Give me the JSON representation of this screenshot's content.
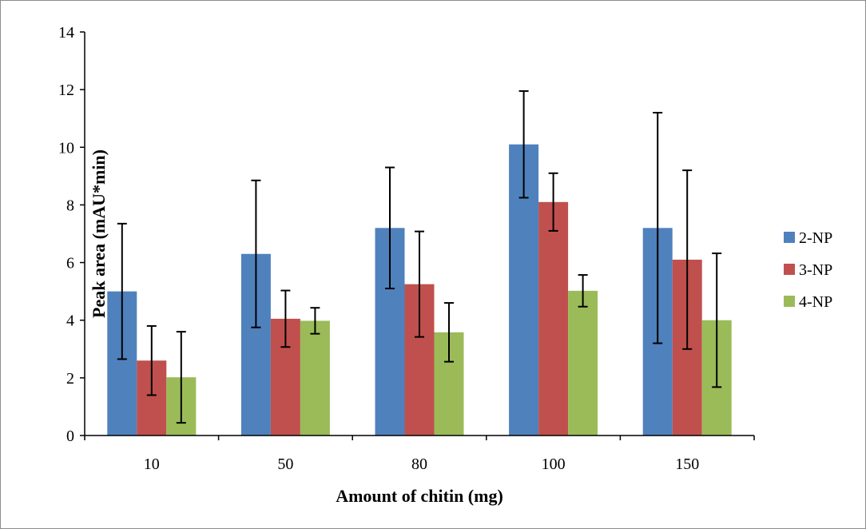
{
  "chart_data": {
    "type": "bar",
    "title": "",
    "xlabel": "Amount of chitin (mg)",
    "ylabel": "Peak area (mAU*min)",
    "categories": [
      "10",
      "50",
      "80",
      "100",
      "150"
    ],
    "ylim": [
      0,
      14
    ],
    "yticks": [
      0,
      2,
      4,
      6,
      8,
      10,
      12,
      14
    ],
    "grid": false,
    "legend_position": "right",
    "series": [
      {
        "name": "2-NP",
        "color": "#4f81bd",
        "values": [
          5.0,
          6.3,
          7.2,
          10.1,
          7.2
        ],
        "errors": [
          2.35,
          2.55,
          2.1,
          1.85,
          4.0
        ]
      },
      {
        "name": "3-NP",
        "color": "#c0504d",
        "values": [
          2.6,
          4.05,
          5.25,
          8.1,
          6.1
        ],
        "errors": [
          1.2,
          0.98,
          1.83,
          1.0,
          3.1
        ]
      },
      {
        "name": "4-NP",
        "color": "#9bbb59",
        "values": [
          2.02,
          3.98,
          3.58,
          5.02,
          4.0
        ],
        "errors": [
          1.58,
          0.45,
          1.02,
          0.55,
          2.32
        ]
      }
    ]
  }
}
